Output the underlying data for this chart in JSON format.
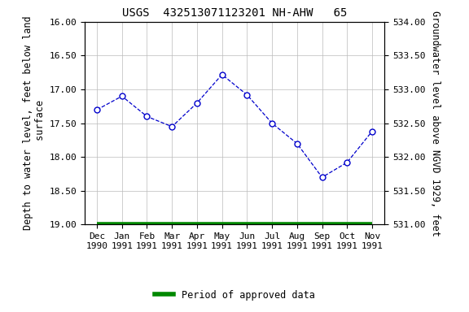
{
  "title": "USGS  432513071123201 NH-AHW   65",
  "xlabel_months": [
    "Dec\n1990",
    "Jan\n1991",
    "Feb\n1991",
    "Mar\n1991",
    "Apr\n1991",
    "May\n1991",
    "Jun\n1991",
    "Jul\n1991",
    "Aug\n1991",
    "Sep\n1991",
    "Oct\n1991",
    "Nov\n1991"
  ],
  "x_values": [
    0,
    1,
    2,
    3,
    4,
    5,
    6,
    7,
    8,
    9,
    10,
    11
  ],
  "y_depth": [
    17.3,
    17.1,
    17.4,
    17.55,
    17.2,
    16.78,
    17.08,
    17.5,
    17.8,
    18.3,
    18.08,
    17.62
  ],
  "ylim_depth": [
    19.0,
    16.0
  ],
  "yticks_depth": [
    16.0,
    16.5,
    17.0,
    17.5,
    18.0,
    18.5,
    19.0
  ],
  "ylim_ngvd": [
    531.0,
    534.0
  ],
  "yticks_ngvd": [
    531.0,
    531.5,
    532.0,
    532.5,
    533.0,
    533.5,
    534.0
  ],
  "left_ylabel": "Depth to water level, feet below land\n surface",
  "right_ylabel": "Groundwater level above NGVD 1929, feet",
  "line_color": "#0000CC",
  "marker_color": "#0000CC",
  "background_color": "#ffffff",
  "grid_color": "#bbbbbb",
  "legend_label": "Period of approved data",
  "legend_line_color": "#008800",
  "title_fontsize": 10,
  "label_fontsize": 8.5,
  "tick_fontsize": 8
}
